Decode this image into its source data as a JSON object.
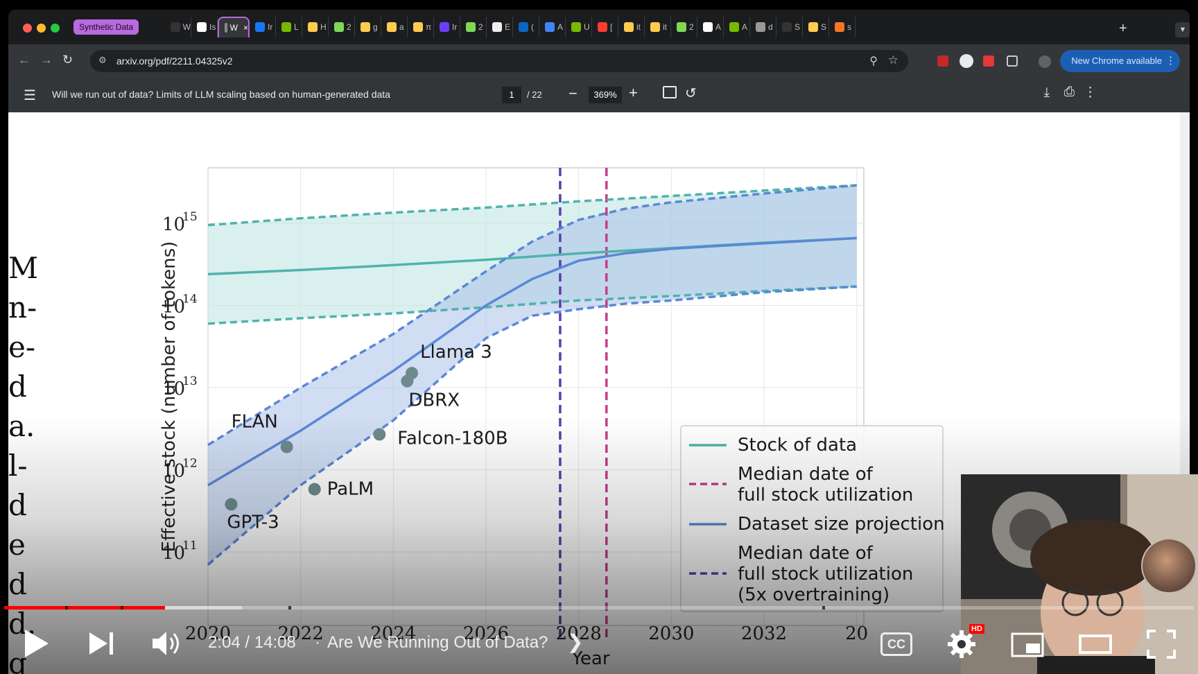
{
  "browser": {
    "group_chip": "Synthetic Data",
    "tabs": [
      {
        "label": "W",
        "color": "#333"
      },
      {
        "label": "Is",
        "color": "#fff"
      },
      {
        "label": "W",
        "color": "#888",
        "active": true
      },
      {
        "label": "Ir",
        "color": "#1877f2"
      },
      {
        "label": "L",
        "color": "#76b900"
      },
      {
        "label": "H",
        "color": "#ffcc4d"
      },
      {
        "label": "2",
        "color": "#7ed957"
      },
      {
        "label": "g",
        "color": "#ffcc4d"
      },
      {
        "label": "a",
        "color": "#ffcc4d"
      },
      {
        "label": "π",
        "color": "#ffcc4d"
      },
      {
        "label": "Ir",
        "color": "#6b3df5"
      },
      {
        "label": "2",
        "color": "#7ed957"
      },
      {
        "label": "E",
        "color": "#eee"
      },
      {
        "label": "(",
        "color": "#0a66c2"
      },
      {
        "label": "A",
        "color": "#4285f4"
      },
      {
        "label": "U",
        "color": "#76b900"
      },
      {
        "label": "[",
        "color": "#ff3b30"
      },
      {
        "label": "it",
        "color": "#ffcc4d"
      },
      {
        "label": "it",
        "color": "#ffcc4d"
      },
      {
        "label": "2",
        "color": "#7ed957"
      },
      {
        "label": "A",
        "color": "#fff"
      },
      {
        "label": "A",
        "color": "#76b900"
      },
      {
        "label": "d",
        "color": "#999"
      },
      {
        "label": "S",
        "color": "#333"
      },
      {
        "label": "S",
        "color": "#ffcc4d"
      },
      {
        "label": "s",
        "color": "#f37626"
      }
    ],
    "url": "arxiv.org/pdf/2211.04325v2",
    "update_button": "New Chrome available"
  },
  "pdf": {
    "title": "Will we run out of data? Limits of LLM scaling based on human-generated data",
    "page_current": "1",
    "page_total": "/ 22",
    "zoom": "369%",
    "margin_text": [
      "M",
      "n-",
      "e-",
      "d",
      "a.",
      "l-",
      "d",
      "e",
      "d",
      "d.",
      "g"
    ]
  },
  "chart_data": {
    "type": "line",
    "ylabel": "Effective stock (number of tokens)",
    "xlabel": "Year",
    "yscale": "log",
    "xlim": [
      2020,
      2034
    ],
    "ylim": [
      100000000000.0,
      1e+16
    ],
    "xticks": [
      "2020",
      "2022",
      "2024",
      "2026",
      "2028",
      "2030",
      "2032",
      "20"
    ],
    "yticks": [
      {
        "base": "10",
        "exp": "11",
        "value": 100000000000.0
      },
      {
        "base": "10",
        "exp": "12",
        "value": 1000000000000.0
      },
      {
        "base": "10",
        "exp": "13",
        "value": 10000000000000.0
      },
      {
        "base": "10",
        "exp": "14",
        "value": 100000000000000.0
      },
      {
        "base": "10",
        "exp": "15",
        "value": 1000000000000000.0
      }
    ],
    "series": [
      {
        "name": "Stock of data",
        "color": "#4fb3aa",
        "x": [
          2020,
          2022,
          2024,
          2026,
          2028,
          2030,
          2032,
          2034
        ],
        "median": [
          240000000000000.0,
          270000000000000.0,
          310000000000000.0,
          360000000000000.0,
          430000000000000.0,
          500000000000000.0,
          580000000000000.0,
          660000000000000.0
        ],
        "upper": [
          950000000000000.0,
          1150000000000000.0,
          1350000000000000.0,
          1550000000000000.0,
          1850000000000000.0,
          2150000000000000.0,
          2500000000000000.0,
          2900000000000000.0
        ],
        "lower": [
          60000000000000.0,
          70000000000000.0,
          80000000000000.0,
          95000000000000.0,
          115000000000000.0,
          130000000000000.0,
          150000000000000.0,
          170000000000000.0
        ]
      },
      {
        "name": "Dataset size projection",
        "color": "#5a87d6",
        "x": [
          2020,
          2022,
          2024,
          2026,
          2027,
          2028,
          2029,
          2030,
          2032,
          2034
        ],
        "median": [
          650000000000.0,
          3000000000000.0,
          16000000000000.0,
          100000000000000.0,
          210000000000000.0,
          350000000000000.0,
          430000000000000.0,
          490000000000000.0,
          570000000000000.0,
          660000000000000.0
        ],
        "upper": [
          2000000000000.0,
          10000000000000.0,
          45000000000000.0,
          260000000000000.0,
          600000000000000.0,
          1100000000000000.0,
          1500000000000000.0,
          1800000000000000.0,
          2300000000000000.0,
          2900000000000000.0
        ],
        "lower": [
          70000000000.0,
          650000000000.0,
          4000000000000.0,
          40000000000000.0,
          75000000000000.0,
          90000000000000.0,
          105000000000000.0,
          115000000000000.0,
          145000000000000.0,
          170000000000000.0
        ]
      }
    ],
    "vlines": [
      {
        "name": "Median date of full stock utilization",
        "x": 2028.6,
        "color": "#c43d8c"
      },
      {
        "name": "Median date of full stock utilization (5x overtraining)",
        "x": 2027.6,
        "color": "#5a3db0"
      }
    ],
    "points": [
      {
        "label": "GPT-3",
        "x": 2020.5,
        "y": 380000000000.0
      },
      {
        "label": "FLAN",
        "x": 2021.7,
        "y": 1900000000000.0
      },
      {
        "label": "PaLM",
        "x": 2022.3,
        "y": 580000000000.0
      },
      {
        "label": "Falcon-180B",
        "x": 2023.7,
        "y": 2700000000000.0
      },
      {
        "label": "DBRX",
        "x": 2024.3,
        "y": 12000000000000.0
      },
      {
        "label": "Llama 3",
        "x": 2024.4,
        "y": 15000000000000.0
      }
    ],
    "legend": {
      "placement": "bottom-right",
      "entries": [
        {
          "lines": [
            "Stock of data"
          ],
          "style": "solid",
          "color": "#4fb3aa"
        },
        {
          "lines": [
            "Median date of",
            "full stock utilization"
          ],
          "style": "dashed",
          "color": "#c43d8c"
        },
        {
          "lines": [
            "Dataset size projection"
          ],
          "style": "solid",
          "color": "#5a87d6"
        },
        {
          "lines": [
            "Median date of",
            "full stock utilization",
            "(5x overtraining)"
          ],
          "style": "dashed",
          "color": "#5a3db0"
        }
      ]
    }
  },
  "video": {
    "time": "2:04 / 14:08",
    "separator": "·",
    "title": "Are We Running Out of Data?",
    "hd_badge": "HD",
    "cc": "CC",
    "progress_played": 0.135,
    "progress_loaded": 0.2
  }
}
